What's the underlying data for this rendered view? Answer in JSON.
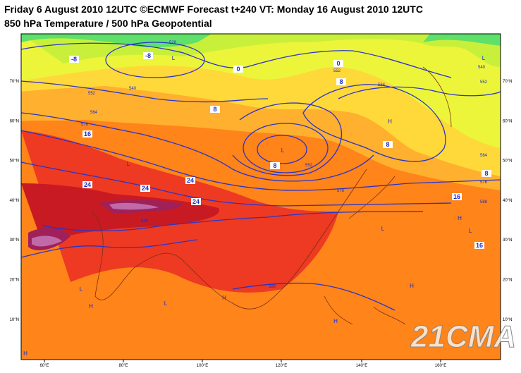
{
  "header": {
    "title": "Friday 6 August 2010 12UTC ©ECMWF Forecast t+240 VT: Monday 16 August 2010 12UTC",
    "subtitle": "850 hPa Temperature / 500 hPa Geopotential"
  },
  "axes": {
    "longitudes": [
      "60°E",
      "80°E",
      "100°E",
      "120°E",
      "140°E",
      "160°E"
    ],
    "latitudes": [
      "70°N",
      "60°N",
      "50°N",
      "40°N",
      "30°N",
      "20°N",
      "10°N"
    ]
  },
  "temperature_labels": [
    "-8",
    "-8",
    "0",
    "0",
    "8",
    "8",
    "8",
    "8",
    "8",
    "16",
    "16",
    "16",
    "24",
    "24",
    "24",
    "24"
  ],
  "height_labels": [
    "528",
    "540",
    "552",
    "564",
    "576",
    "552",
    "576",
    "564",
    "564",
    "576",
    "588",
    "540",
    "552",
    "588",
    "588",
    "552"
  ],
  "pressure_centers": [
    "L",
    "L",
    "L",
    "L",
    "L",
    "L",
    "L",
    "L",
    "H",
    "H",
    "H",
    "H",
    "H",
    "H",
    "H"
  ],
  "watermark": "21CMA"
}
